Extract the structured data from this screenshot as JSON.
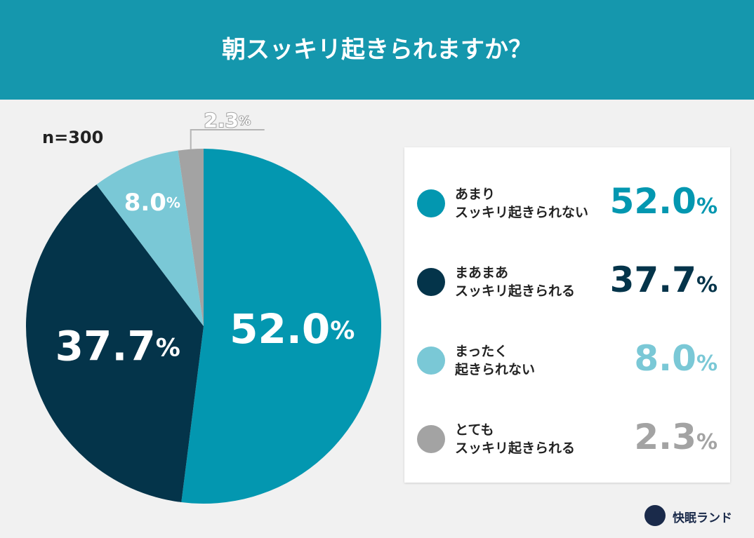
{
  "chart_data": {
    "type": "pie",
    "title": "朝スッキリ起きられますか？",
    "subtitle": "n=300",
    "categories": [
      "あまり\nスッキリ起きられない",
      "まあまあ\nスッキリ起きられる",
      "まったく\n起きられない",
      "とても\nスッキリ起きられる"
    ],
    "values": [
      52.0,
      37.7,
      8.0,
      2.3
    ],
    "value_labels": [
      "52.0%",
      "37.7%",
      "8.0%",
      "2.3%"
    ],
    "colors": [
      "#0397b0",
      "#04344a",
      "#7ac8d6",
      "#a3a3a3"
    ]
  },
  "brand": "快眠ランド"
}
